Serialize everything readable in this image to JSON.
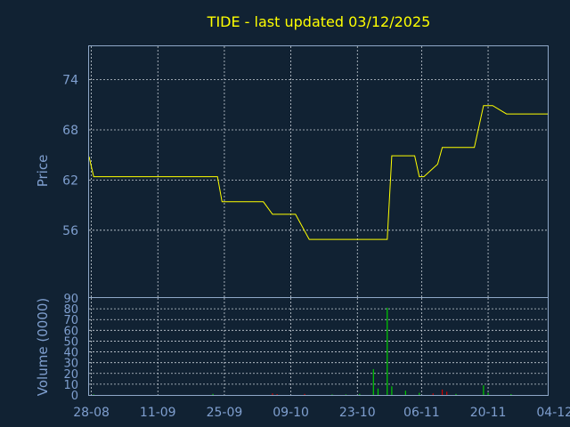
{
  "chart_data": {
    "type": "line",
    "title": "TIDE - last updated 03/12/2025",
    "price_panel": {
      "ylabel": "Price",
      "ylim": [
        48,
        78
      ],
      "yticks": [
        "74",
        "68",
        "62",
        "56"
      ],
      "ytick_values": [
        74,
        68,
        62,
        56
      ],
      "line_color": "#ffff00",
      "series": [
        {
          "x": 0,
          "y": 64.8
        },
        {
          "x": 1,
          "y": 62.4
        },
        {
          "x": 28,
          "y": 62.4
        },
        {
          "x": 29,
          "y": 59.4
        },
        {
          "x": 38,
          "y": 59.4
        },
        {
          "x": 40,
          "y": 57.9
        },
        {
          "x": 45,
          "y": 57.9
        },
        {
          "x": 48,
          "y": 54.9
        },
        {
          "x": 65,
          "y": 54.9
        },
        {
          "x": 66,
          "y": 64.9
        },
        {
          "x": 71,
          "y": 64.9
        },
        {
          "x": 72,
          "y": 62.4
        },
        {
          "x": 73,
          "y": 62.4
        },
        {
          "x": 76,
          "y": 63.9
        },
        {
          "x": 77,
          "y": 65.9
        },
        {
          "x": 84,
          "y": 65.9
        },
        {
          "x": 86,
          "y": 70.9
        },
        {
          "x": 88,
          "y": 70.9
        },
        {
          "x": 91,
          "y": 69.9
        },
        {
          "x": 100,
          "y": 69.9
        }
      ]
    },
    "volume_panel": {
      "ylabel": "Volume (0000)",
      "ylim": [
        0,
        90
      ],
      "yticks": [
        "90",
        "80",
        "70",
        "60",
        "50",
        "40",
        "30",
        "20",
        "10",
        "0"
      ],
      "ytick_values": [
        90,
        80,
        70,
        60,
        50,
        40,
        30,
        20,
        10,
        0
      ],
      "bars": [
        {
          "x": 1,
          "v": 0.5,
          "color": "#00cc00"
        },
        {
          "x": 27,
          "v": 1,
          "color": "#00cc00"
        },
        {
          "x": 40,
          "v": 1.5,
          "color": "#cc0000"
        },
        {
          "x": 41,
          "v": 0.8,
          "color": "#cc0000"
        },
        {
          "x": 47,
          "v": 1,
          "color": "#cc0000"
        },
        {
          "x": 53,
          "v": 0.5,
          "color": "#00cc00"
        },
        {
          "x": 56,
          "v": 0.5,
          "color": "#00cc00"
        },
        {
          "x": 59,
          "v": 1,
          "color": "#00cc00"
        },
        {
          "x": 62,
          "v": 24,
          "color": "#00cc00"
        },
        {
          "x": 63,
          "v": 6,
          "color": "#00cc00"
        },
        {
          "x": 65,
          "v": 81,
          "color": "#00cc00"
        },
        {
          "x": 66,
          "v": 8,
          "color": "#00cc00"
        },
        {
          "x": 69,
          "v": 4,
          "color": "#00cc00"
        },
        {
          "x": 72,
          "v": 2,
          "color": "#00cc00"
        },
        {
          "x": 75,
          "v": 1.5,
          "color": "#cc0000"
        },
        {
          "x": 77,
          "v": 5,
          "color": "#cc0000"
        },
        {
          "x": 78,
          "v": 3,
          "color": "#cc0000"
        },
        {
          "x": 80,
          "v": 1,
          "color": "#00cc00"
        },
        {
          "x": 86,
          "v": 9,
          "color": "#00cc00"
        },
        {
          "x": 87,
          "v": 2,
          "color": "#00cc00"
        },
        {
          "x": 92,
          "v": 0.8,
          "color": "#00cc00"
        }
      ]
    },
    "x_axis": {
      "xlim": [
        0,
        100
      ],
      "ticks": [
        "28-08",
        "11-09",
        "25-09",
        "09-10",
        "23-10",
        "06-11",
        "20-11",
        "04-12"
      ],
      "tick_values": [
        0.5,
        15,
        29.5,
        44,
        58.5,
        72.5,
        87,
        101.5
      ]
    },
    "grid": true
  }
}
